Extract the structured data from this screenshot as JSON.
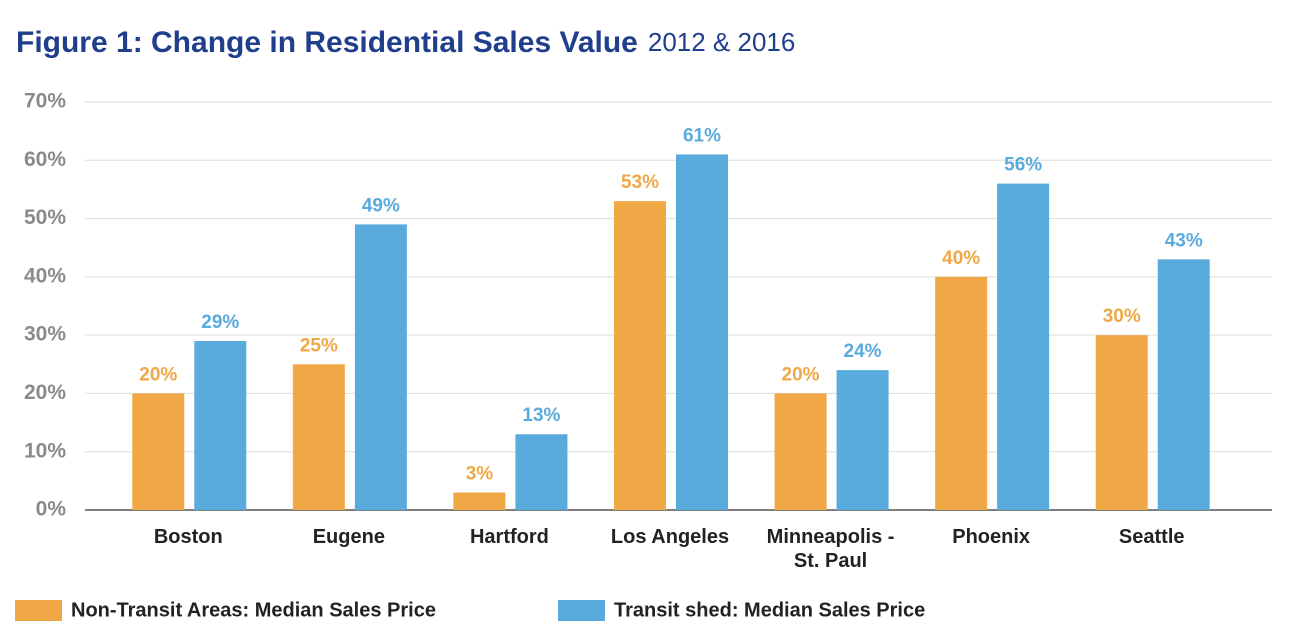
{
  "chart_data": {
    "type": "bar",
    "title": "Figure 1:  Change in Residential Sales Value",
    "subtitle": "2012 & 2016",
    "categories": [
      "Boston",
      "Eugene",
      "Hartford",
      "Los Angeles",
      "Minneapolis - St. Paul",
      "Phoenix",
      "Seattle"
    ],
    "series": [
      {
        "name": "Non-Transit Areas: Median Sales Price",
        "color": "#f0a847",
        "values": [
          20,
          25,
          3,
          53,
          20,
          40,
          30
        ],
        "value_labels": [
          "20%",
          "25%",
          "3%",
          "53%",
          "20%",
          "40%",
          "30%"
        ]
      },
      {
        "name": "Transit shed: Median Sales Price",
        "color": "#5aabdd",
        "values": [
          29,
          49,
          13,
          61,
          24,
          56,
          43
        ],
        "value_labels": [
          "29%",
          "49%",
          "13%",
          "61%",
          "24%",
          "56%",
          "43%"
        ]
      }
    ],
    "ylim": [
      0,
      70
    ],
    "yticks": [
      {
        "value": 0,
        "label": "0%"
      },
      {
        "value": 10,
        "label": "10%"
      },
      {
        "value": 20,
        "label": "20%"
      },
      {
        "value": 30,
        "label": "30%"
      },
      {
        "value": 40,
        "label": "40%"
      },
      {
        "value": 50,
        "label": "50%"
      },
      {
        "value": 60,
        "label": "60%"
      },
      {
        "value": 70,
        "label": "70%"
      }
    ],
    "grid": true,
    "legend": "bottom"
  }
}
